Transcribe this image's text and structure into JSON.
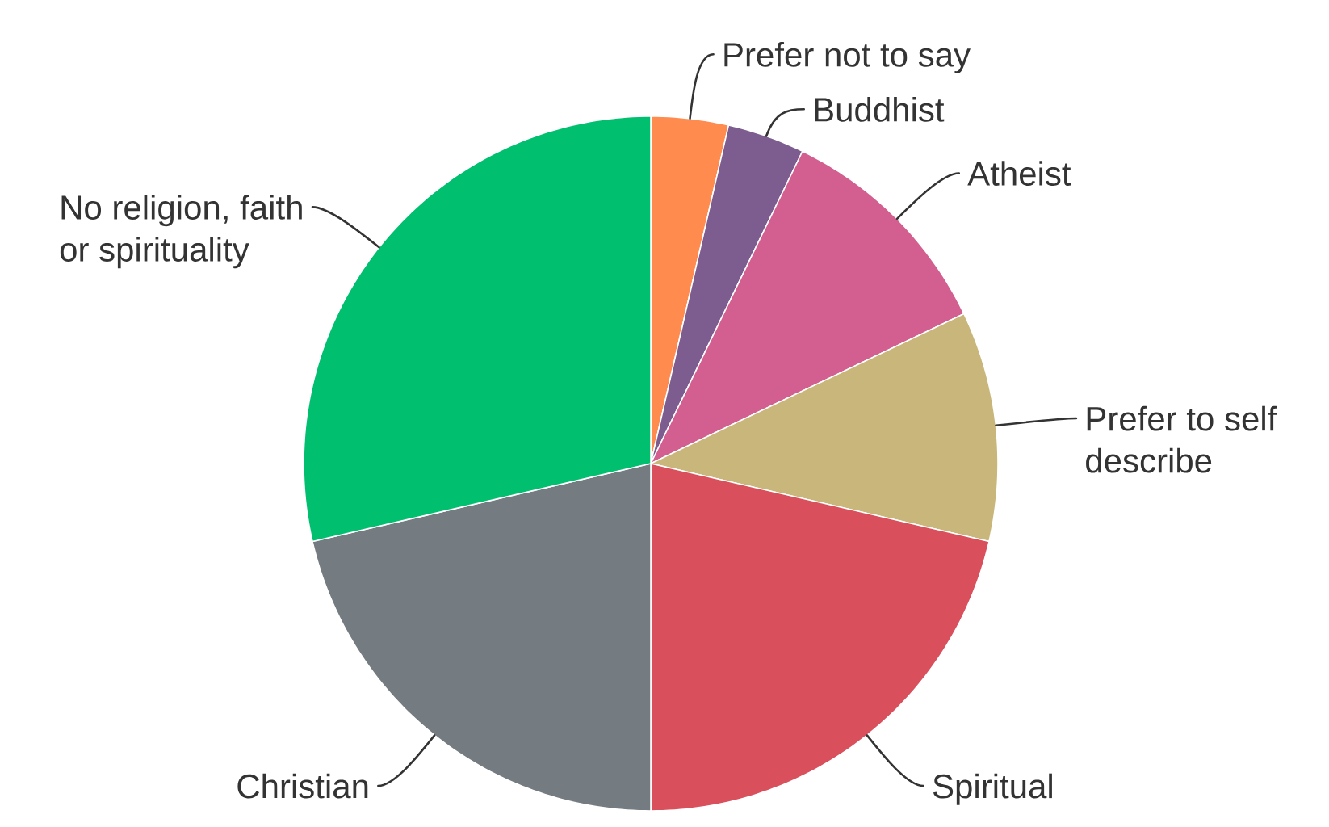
{
  "chart_data": {
    "type": "pie",
    "categories": [
      "Prefer not to say",
      "Buddhist",
      "Atheist",
      "Prefer to self describe",
      "Spiritual",
      "Christian",
      "No religion, faith or spirituality"
    ],
    "values": [
      3.6,
      3.6,
      10.7,
      10.7,
      21.4,
      21.4,
      28.6
    ],
    "colors": [
      "#ff8b4f",
      "#7d5c8f",
      "#d35e90",
      "#c8b67a",
      "#d94f5c",
      "#747c82",
      "#00bf6f"
    ]
  }
}
